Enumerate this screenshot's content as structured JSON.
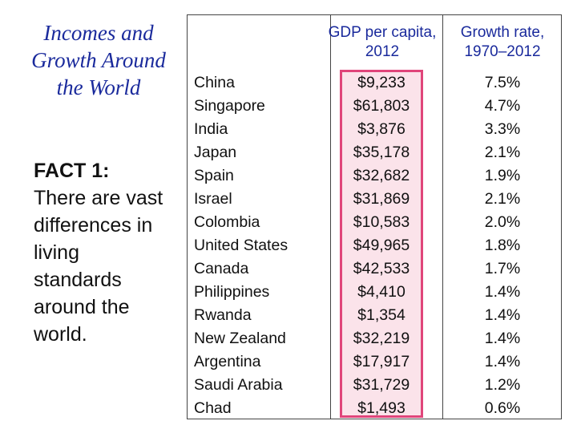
{
  "slide": {
    "title": "Incomes and Growth Around the World",
    "fact_heading": "FACT 1:",
    "fact_text": "There are vast differences in living standards around the world."
  },
  "table": {
    "headers": {
      "country": "",
      "gdp": "GDP per capita, 2012",
      "growth": "Growth rate, 1970–2012"
    },
    "rows": [
      {
        "country": "China",
        "gdp": "$9,233",
        "growth": "7.5%"
      },
      {
        "country": "Singapore",
        "gdp": "$61,803",
        "growth": "4.7%"
      },
      {
        "country": "India",
        "gdp": "$3,876",
        "growth": "3.3%"
      },
      {
        "country": "Japan",
        "gdp": "$35,178",
        "growth": "2.1%"
      },
      {
        "country": "Spain",
        "gdp": "$32,682",
        "growth": "1.9%"
      },
      {
        "country": "Israel",
        "gdp": "$31,869",
        "growth": "2.1%"
      },
      {
        "country": "Colombia",
        "gdp": "$10,583",
        "growth": "2.0%"
      },
      {
        "country": "United States",
        "gdp": "$49,965",
        "growth": "1.8%"
      },
      {
        "country": "Canada",
        "gdp": "$42,533",
        "growth": "1.7%"
      },
      {
        "country": "Philippines",
        "gdp": "$4,410",
        "growth": "1.4%"
      },
      {
        "country": "Rwanda",
        "gdp": "$1,354",
        "growth": "1.4%"
      },
      {
        "country": "New Zealand",
        "gdp": "$32,219",
        "growth": "1.4%"
      },
      {
        "country": "Argentina",
        "gdp": "$17,917",
        "growth": "1.4%"
      },
      {
        "country": "Saudi Arabia",
        "gdp": "$31,729",
        "growth": "1.2%"
      },
      {
        "country": "Chad",
        "gdp": "$1,493",
        "growth": "0.6%"
      }
    ]
  },
  "colors": {
    "title": "#1a2a9c",
    "highlight_border": "#e0457a",
    "highlight_fill": "#fbe3ea"
  }
}
